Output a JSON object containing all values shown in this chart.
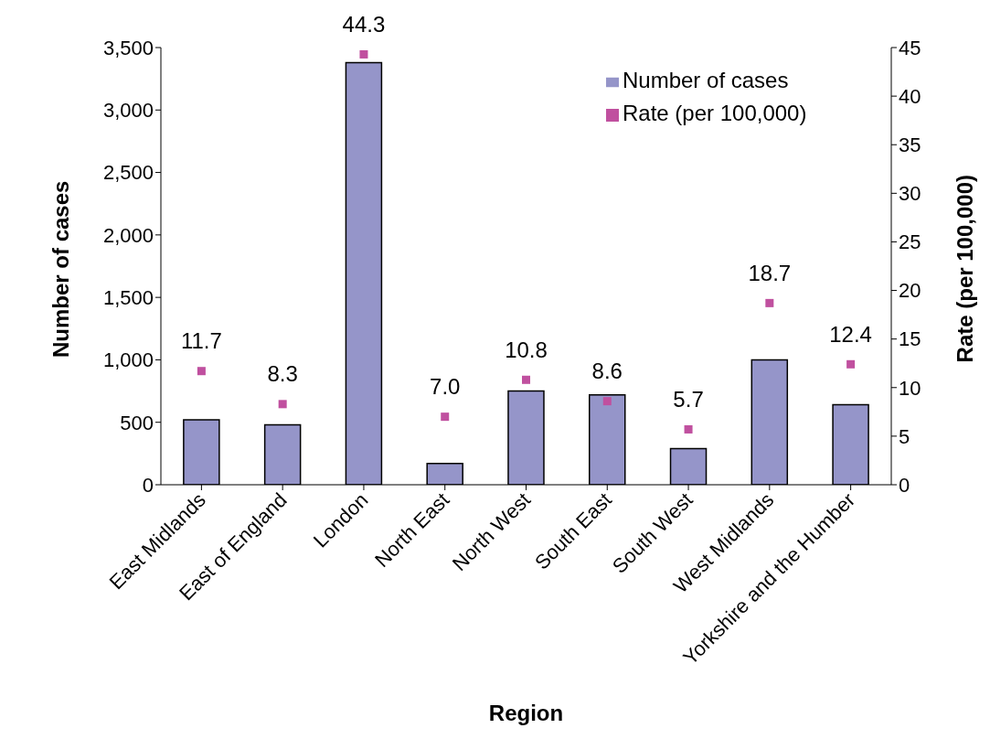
{
  "chart_data": {
    "type": "bar",
    "xlabel": "Region",
    "ylabel": "Number of cases",
    "y2label": "Rate (per 100,000)",
    "categories": [
      "East Midlands",
      "East of England",
      "London",
      "North East",
      "North West",
      "South East",
      "South West",
      "West Midlands",
      "Yorkshire and the Humber"
    ],
    "series": [
      {
        "name": "Number of cases",
        "color": "#9595c9",
        "values": [
          520,
          480,
          3380,
          170,
          750,
          720,
          290,
          1000,
          640
        ]
      },
      {
        "name": "Rate (per 100,000)",
        "type": "scatter",
        "axis": "y2",
        "color": "#c0509f",
        "marker": "square",
        "values": [
          11.7,
          8.3,
          44.3,
          7.0,
          10.8,
          8.6,
          5.7,
          18.7,
          12.4
        ],
        "value_labels": [
          "11.7",
          "8.3",
          "44.3",
          "7.0",
          "10.8",
          "8.6",
          "5.7",
          "18.7",
          "12.4"
        ]
      }
    ],
    "ylim": [
      0,
      3500
    ],
    "yticks": [
      {
        "value": 0,
        "label": "0"
      },
      {
        "value": 500,
        "label": "500"
      },
      {
        "value": 1000,
        "label": "1,000"
      },
      {
        "value": 1500,
        "label": "1,500"
      },
      {
        "value": 2000,
        "label": "2,000"
      },
      {
        "value": 2500,
        "label": "2,500"
      },
      {
        "value": 3000,
        "label": "3,000"
      },
      {
        "value": 3500,
        "label": "3,500"
      }
    ],
    "y2lim": [
      0,
      45
    ],
    "y2ticks": [
      0,
      5,
      10,
      15,
      20,
      25,
      30,
      35,
      40,
      45
    ],
    "grid": false,
    "legend": "top right"
  }
}
